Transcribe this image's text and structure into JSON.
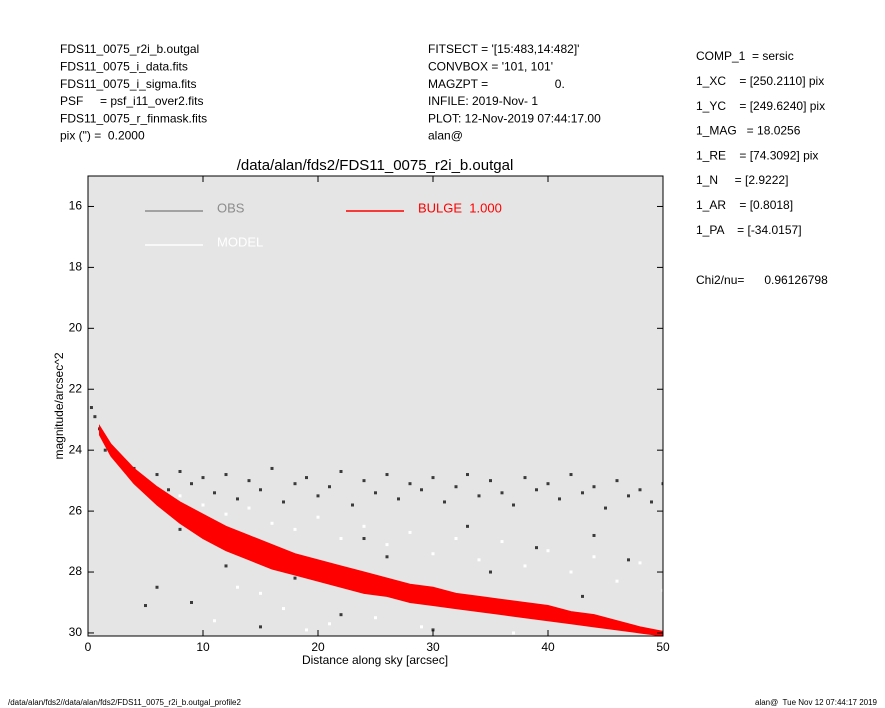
{
  "header": {
    "left": [
      "FDS11_0075_r2i_b.outgal",
      "FDS11_0075_i_data.fits",
      "FDS11_0075_i_sigma.fits",
      "PSF     = psf_i11_over2.fits",
      "FDS11_0075_r_finmask.fits",
      "pix (\") =  0.2000"
    ],
    "middle": [
      "FITSECT = '[15:483,14:482]'",
      "CONVBOX = '101, 101'",
      "MAGZPT =                    0.",
      "INFILE: 2019-Nov- 1",
      "PLOT: 12-Nov-2019 07:44:17.00",
      "alan@"
    ],
    "right": [
      "COMP_1  = sersic",
      "1_XC    = [250.2110] pix",
      "1_YC    = [249.6240] pix",
      "1_MAG   = 18.0256",
      "1_RE    = [74.3092] pix",
      "1_N     = [2.9222]",
      "1_AR    = [0.8018]",
      "1_PA    = [-34.0157]"
    ],
    "chi2": "Chi2/nu=      0.96126798"
  },
  "footer": {
    "left": "/data/alan/fds2//data/alan/fds2/FDS11_0075_r2i_b.outgal_profile2",
    "right": "alan@  Tue Nov 12 07:44:17 2019"
  },
  "chart_data": {
    "type": "scatter",
    "title": "/data/alan/fds2/FDS11_0075_r2i_b.outgal",
    "xlabel": "Distance along sky [arcsec]",
    "ylabel": "magnitude/arcsec^2",
    "xlim": [
      0,
      50
    ],
    "ylim": [
      15,
      30.1
    ],
    "xticks": [
      0,
      10,
      20,
      30,
      40,
      50
    ],
    "yticks": [
      16,
      18,
      20,
      22,
      24,
      26,
      28,
      30
    ],
    "background": "#e5e5e5",
    "series": [
      {
        "name": "OBS",
        "color": "#3a3a3a",
        "legend_color": "#8c8c8c",
        "x": [
          0.3,
          0.6,
          1,
          1.5,
          2,
          3,
          4,
          5,
          6,
          7,
          8,
          9,
          10,
          11,
          12,
          13,
          14,
          15,
          16,
          17,
          18,
          19,
          20,
          21,
          22,
          23,
          24,
          25,
          26,
          27,
          28,
          29,
          30,
          31,
          32,
          33,
          34,
          35,
          36,
          37,
          38,
          39,
          40,
          41,
          42,
          43,
          44,
          45,
          46,
          47,
          48,
          49,
          50,
          6,
          9,
          12,
          15,
          18,
          22,
          26,
          30,
          35,
          39,
          43,
          47,
          8,
          24,
          33,
          44,
          5
        ],
        "values": [
          22.6,
          22.9,
          23.3,
          24.0,
          24.1,
          24.3,
          24.6,
          25.0,
          24.8,
          25.3,
          24.7,
          25.1,
          24.9,
          25.4,
          24.8,
          25.6,
          25.0,
          25.3,
          24.6,
          25.7,
          25.1,
          24.9,
          25.5,
          25.2,
          24.7,
          25.8,
          25.0,
          25.4,
          24.8,
          25.6,
          25.1,
          25.3,
          24.9,
          25.7,
          25.2,
          24.8,
          25.5,
          25.0,
          25.4,
          25.8,
          24.9,
          25.3,
          25.1,
          25.6,
          24.8,
          25.4,
          25.2,
          25.9,
          25.0,
          25.5,
          25.3,
          25.7,
          25.1,
          28.5,
          29.0,
          27.8,
          29.8,
          28.2,
          29.4,
          27.5,
          29.9,
          28.0,
          27.2,
          28.8,
          27.6,
          26.6,
          26.9,
          26.5,
          26.8,
          29.1
        ]
      },
      {
        "name": "MODEL",
        "color": "#ffffff",
        "legend_color": "#ffffff",
        "x": [
          4,
          6,
          8,
          10,
          12,
          14,
          16,
          18,
          20,
          22,
          24,
          26,
          28,
          30,
          32,
          34,
          36,
          38,
          40,
          42,
          44,
          46,
          48,
          50,
          13,
          17,
          21,
          25,
          29,
          37,
          11,
          15,
          19
        ],
        "values": [
          24.9,
          25.4,
          25.5,
          25.8,
          26.1,
          25.9,
          26.4,
          26.6,
          26.2,
          26.9,
          26.5,
          27.1,
          26.7,
          27.4,
          26.9,
          27.6,
          27.0,
          27.8,
          27.3,
          28.0,
          27.5,
          28.3,
          27.7,
          28.6,
          28.5,
          29.2,
          29.7,
          29.5,
          29.8,
          30.0,
          29.6,
          28.7,
          29.9
        ]
      },
      {
        "name": "BULGE  1.000",
        "color": "#ff0000",
        "legend_color": "#ff0000",
        "x": [
          1,
          2,
          4,
          6,
          8,
          10,
          12,
          14,
          16,
          18,
          20,
          22,
          24,
          26,
          28,
          30,
          32,
          34,
          36,
          38,
          40,
          42,
          44,
          46,
          48,
          50
        ],
        "low": [
          23.2,
          23.8,
          24.6,
          25.2,
          25.7,
          26.1,
          26.5,
          26.8,
          27.1,
          27.4,
          27.6,
          27.8,
          28.0,
          28.2,
          28.4,
          28.5,
          28.7,
          28.8,
          28.9,
          29.0,
          29.1,
          29.3,
          29.4,
          29.6,
          29.8,
          29.95
        ],
        "high": [
          23.5,
          24.2,
          25.1,
          25.8,
          26.4,
          26.9,
          27.3,
          27.6,
          27.9,
          28.1,
          28.3,
          28.5,
          28.7,
          28.8,
          29.0,
          29.1,
          29.2,
          29.3,
          29.4,
          29.5,
          29.6,
          29.7,
          29.8,
          29.9,
          30.0,
          30.1
        ]
      }
    ]
  }
}
